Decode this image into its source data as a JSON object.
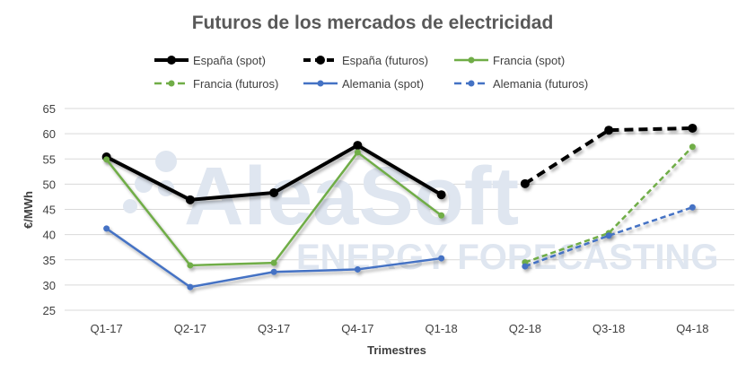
{
  "watermark": {
    "brand": "AleaSoft",
    "tagline": "ENERGY FORECASTING"
  },
  "chart_data": {
    "type": "line",
    "title": "Futuros de los mercados de electricidad",
    "xlabel": "Trimestres",
    "ylabel": "€/MWh",
    "ylim": [
      25,
      65
    ],
    "yticks": [
      25,
      30,
      35,
      40,
      45,
      50,
      55,
      60,
      65
    ],
    "grid": true,
    "legend_position": "top",
    "categories": [
      "Q1-17",
      "Q2-17",
      "Q3-17",
      "Q4-17",
      "Q1-18",
      "Q2-18",
      "Q3-18",
      "Q4-18"
    ],
    "series": [
      {
        "name": "España (spot)",
        "color": "#000000",
        "dashed": false,
        "values": [
          55.4,
          46.9,
          48.3,
          57.7,
          47.9,
          null,
          null,
          null
        ]
      },
      {
        "name": "España (futuros)",
        "color": "#000000",
        "dashed": true,
        "values": [
          null,
          null,
          null,
          null,
          null,
          50.1,
          60.7,
          61.1
        ]
      },
      {
        "name": "Francia (spot)",
        "color": "#70ad47",
        "dashed": false,
        "values": [
          54.9,
          33.9,
          34.4,
          56.3,
          43.8,
          null,
          null,
          null
        ]
      },
      {
        "name": "Francia (futuros)",
        "color": "#70ad47",
        "dashed": true,
        "values": [
          null,
          null,
          null,
          null,
          null,
          34.5,
          40.3,
          57.4
        ]
      },
      {
        "name": "Alemania (spot)",
        "color": "#4472c4",
        "dashed": false,
        "values": [
          41.2,
          29.6,
          32.6,
          33.1,
          35.3,
          null,
          null,
          null
        ]
      },
      {
        "name": "Alemania (futuros)",
        "color": "#4472c4",
        "dashed": true,
        "values": [
          null,
          null,
          null,
          null,
          null,
          33.7,
          39.8,
          45.4
        ]
      }
    ]
  }
}
